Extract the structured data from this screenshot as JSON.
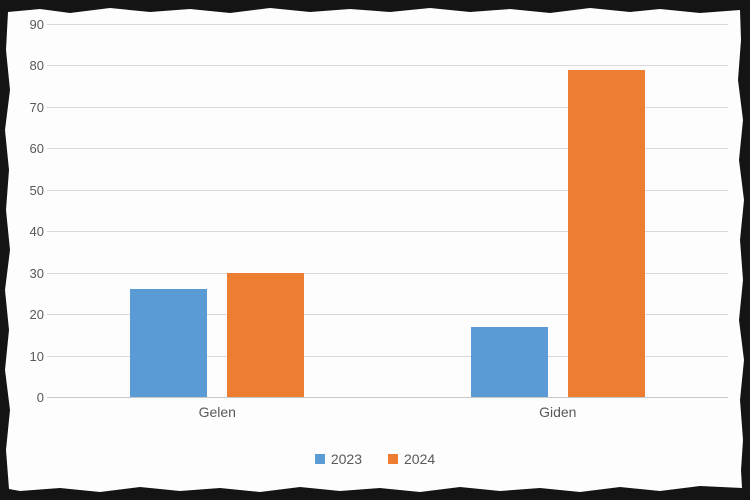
{
  "chart_data": {
    "type": "bar",
    "title": "",
    "xlabel": "",
    "ylabel": "",
    "categories": [
      "Gelen",
      "Giden"
    ],
    "series": [
      {
        "name": "2023",
        "color": "#5B9BD5",
        "values": [
          26,
          17
        ]
      },
      {
        "name": "2024",
        "color": "#ED7D31",
        "values": [
          30,
          79
        ]
      }
    ],
    "ylim": [
      0,
      90
    ],
    "yticks": [
      0,
      10,
      20,
      30,
      40,
      50,
      60,
      70,
      80,
      90
    ],
    "grid": true,
    "legend_position": "bottom"
  },
  "colors": {
    "gridline": "#D9D9D9",
    "axis_line": "#C6C6C6",
    "tick_text": "#595959",
    "background": "#FDFDFD",
    "frame": "#141414",
    "series_2023": "#5B9BD5",
    "series_2024": "#ED7D31"
  }
}
